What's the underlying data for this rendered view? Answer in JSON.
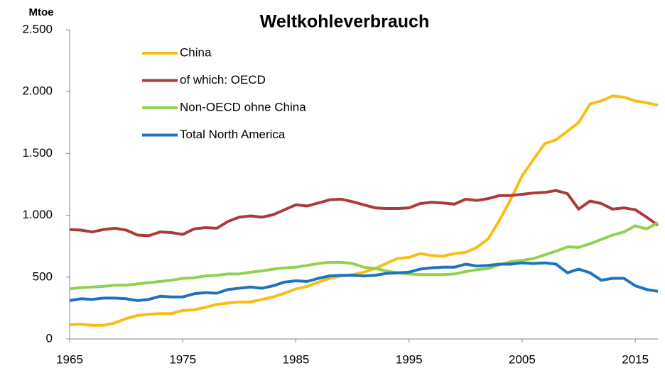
{
  "chart_data": {
    "type": "line",
    "title": "Weltkohleverbrauch",
    "y_label": "Mtoe",
    "x": [
      1965,
      1966,
      1967,
      1968,
      1969,
      1970,
      1971,
      1972,
      1973,
      1974,
      1975,
      1976,
      1977,
      1978,
      1979,
      1980,
      1981,
      1982,
      1983,
      1984,
      1985,
      1986,
      1987,
      1988,
      1989,
      1990,
      1991,
      1992,
      1993,
      1994,
      1995,
      1996,
      1997,
      1998,
      1999,
      2000,
      2001,
      2002,
      2003,
      2004,
      2005,
      2006,
      2007,
      2008,
      2009,
      2010,
      2011,
      2012,
      2013,
      2014,
      2015,
      2016,
      2017
    ],
    "series": [
      {
        "name": "China",
        "color": "#f9bd16",
        "values": [
          115,
          120,
          110,
          110,
          130,
          165,
          190,
          200,
          205,
          205,
          230,
          235,
          255,
          280,
          290,
          300,
          300,
          320,
          340,
          370,
          405,
          425,
          460,
          490,
          510,
          520,
          540,
          570,
          610,
          650,
          660,
          690,
          675,
          670,
          690,
          700,
          740,
          810,
          960,
          1130,
          1320,
          1450,
          1580,
          1610,
          1680,
          1750,
          1900,
          1925,
          1965,
          1955,
          1925,
          1910,
          1890
        ]
      },
      {
        "name": "of which: OECD",
        "color": "#ab3b3b",
        "values": [
          885,
          880,
          865,
          885,
          895,
          880,
          840,
          835,
          865,
          860,
          845,
          890,
          900,
          895,
          950,
          985,
          995,
          985,
          1005,
          1045,
          1085,
          1075,
          1100,
          1125,
          1130,
          1110,
          1085,
          1060,
          1055,
          1055,
          1060,
          1095,
          1105,
          1100,
          1090,
          1130,
          1120,
          1135,
          1160,
          1160,
          1170,
          1180,
          1185,
          1200,
          1175,
          1050,
          1115,
          1095,
          1050,
          1060,
          1045,
          985,
          920
        ]
      },
      {
        "name": "Non-OECD ohne China",
        "color": "#92d050",
        "values": [
          405,
          415,
          420,
          425,
          435,
          435,
          445,
          455,
          465,
          475,
          490,
          495,
          510,
          515,
          525,
          525,
          540,
          550,
          565,
          575,
          580,
          595,
          610,
          620,
          620,
          610,
          580,
          570,
          550,
          535,
          525,
          520,
          520,
          520,
          525,
          545,
          560,
          570,
          600,
          625,
          635,
          650,
          680,
          710,
          745,
          740,
          770,
          805,
          840,
          865,
          915,
          890,
          940
        ]
      },
      {
        "name": "Total North America",
        "color": "#1f73be",
        "values": [
          310,
          325,
          320,
          330,
          330,
          325,
          310,
          320,
          345,
          340,
          340,
          365,
          375,
          370,
          400,
          410,
          420,
          410,
          430,
          460,
          470,
          465,
          490,
          510,
          515,
          515,
          510,
          515,
          530,
          535,
          540,
          565,
          575,
          580,
          580,
          605,
          590,
          595,
          605,
          605,
          615,
          610,
          615,
          605,
          535,
          565,
          535,
          475,
          490,
          490,
          430,
          400,
          385
        ]
      }
    ],
    "xlim": [
      1965,
      2017
    ],
    "xticks": [
      1965,
      1975,
      1985,
      1995,
      2005,
      2015
    ],
    "ylim": [
      0,
      2500
    ],
    "yticks": [
      0,
      500,
      {
        "value": 1000,
        "label": "1.000"
      },
      {
        "value": 1500,
        "label": "1.500"
      },
      {
        "value": 2000,
        "label": "2.000"
      },
      {
        "value": 2500,
        "label": "2.500"
      }
    ]
  }
}
